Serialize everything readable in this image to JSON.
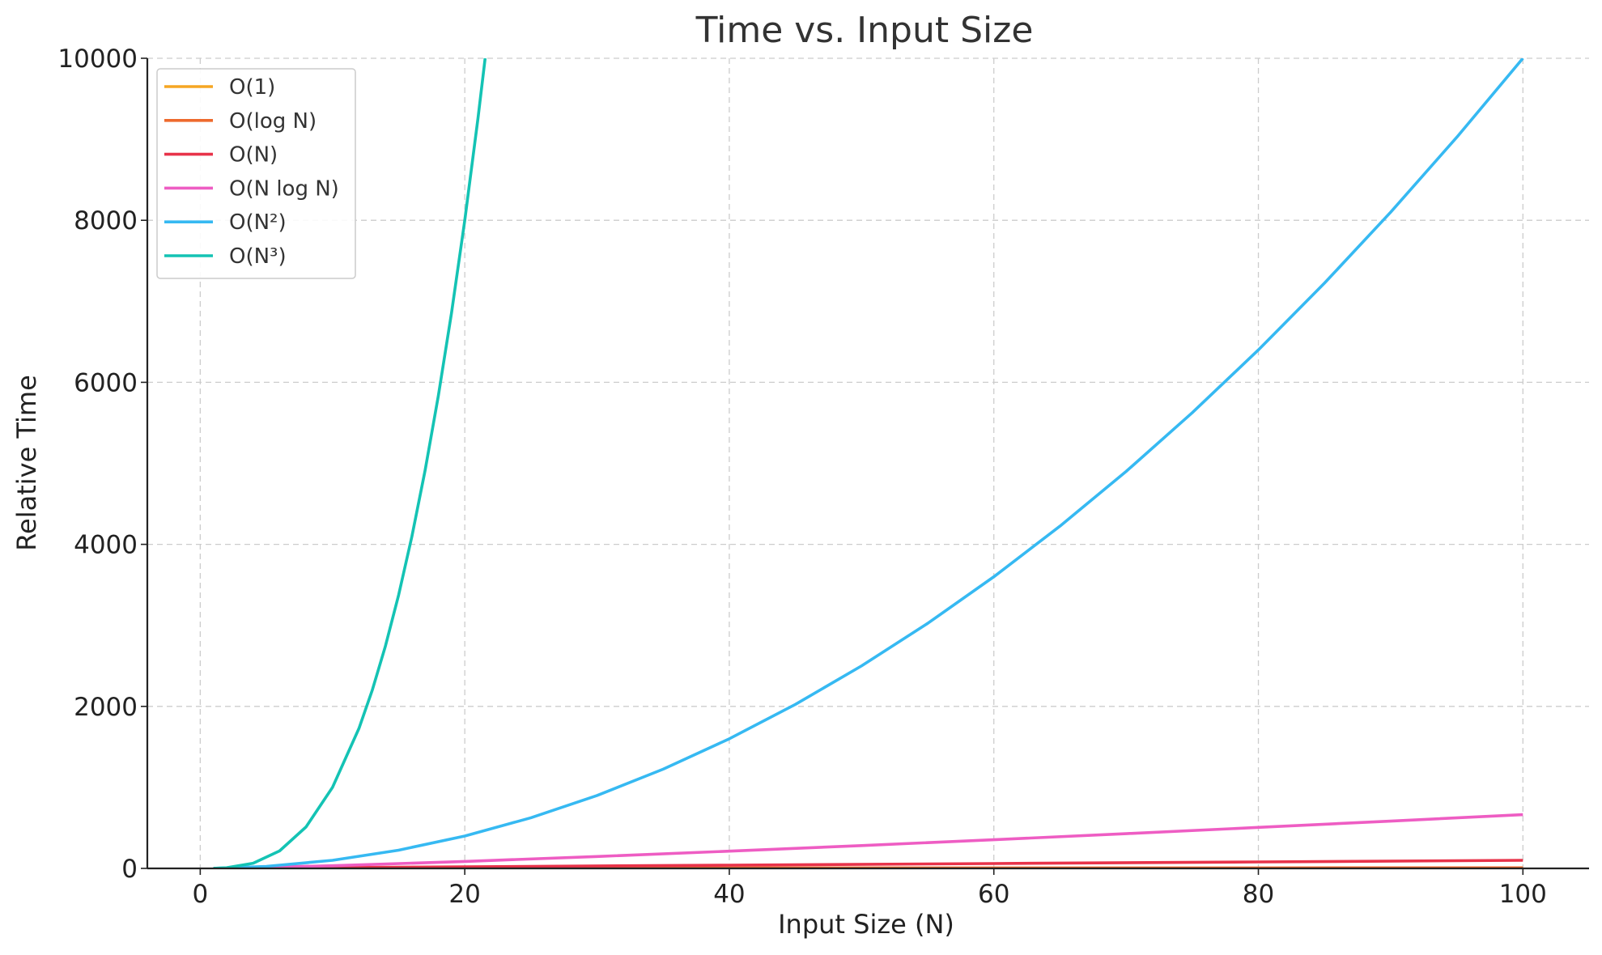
{
  "chart_data": {
    "type": "line",
    "title": "Time vs. Input Size",
    "xlabel": "Input Size (N)",
    "ylabel": "Relative Time",
    "xlim": [
      -4,
      105
    ],
    "ylim": [
      0,
      10000
    ],
    "x_ticks": [
      0,
      20,
      40,
      60,
      80,
      100
    ],
    "y_ticks": [
      0,
      2000,
      4000,
      6000,
      8000,
      10000
    ],
    "grid": true,
    "legend_position": "top-left",
    "series": [
      {
        "name": "O(1)",
        "color": "#f5a623",
        "x": [
          1,
          100
        ],
        "y": [
          1,
          1
        ]
      },
      {
        "name": "O(log N)",
        "color": "#ee6a2d",
        "x": [
          1,
          10,
          20,
          40,
          60,
          80,
          100
        ],
        "y": [
          0,
          3.3,
          4.3,
          5.3,
          5.9,
          6.3,
          6.6
        ]
      },
      {
        "name": "O(N)",
        "color": "#e8334a",
        "x": [
          1,
          20,
          40,
          60,
          80,
          100
        ],
        "y": [
          1,
          20,
          40,
          60,
          80,
          100
        ]
      },
      {
        "name": "O(N log N)",
        "color": "#ee5dc3",
        "x": [
          1,
          10,
          20,
          30,
          40,
          50,
          60,
          70,
          80,
          90,
          100
        ],
        "y": [
          0,
          33,
          86,
          147,
          213,
          282,
          354,
          429,
          506,
          584,
          664
        ]
      },
      {
        "name": "O(N²)",
        "color": "#36b9f2",
        "x": [
          1,
          5,
          10,
          15,
          20,
          25,
          30,
          35,
          40,
          45,
          50,
          55,
          60,
          65,
          70,
          75,
          80,
          85,
          90,
          95,
          100
        ],
        "y": [
          1,
          25,
          100,
          225,
          400,
          625,
          900,
          1225,
          1600,
          2025,
          2500,
          3025,
          3600,
          4225,
          4900,
          5625,
          6400,
          7225,
          8100,
          9025,
          10000
        ]
      },
      {
        "name": "O(N³)",
        "color": "#14c3b4",
        "x": [
          1,
          2,
          4,
          6,
          8,
          10,
          12,
          13,
          14,
          15,
          16,
          17,
          18,
          19,
          20,
          21,
          21.54
        ],
        "y": [
          1,
          8,
          64,
          216,
          512,
          1000,
          1728,
          2197,
          2744,
          3375,
          4096,
          4913,
          5832,
          6859,
          8000,
          9261,
          10000
        ]
      }
    ]
  }
}
